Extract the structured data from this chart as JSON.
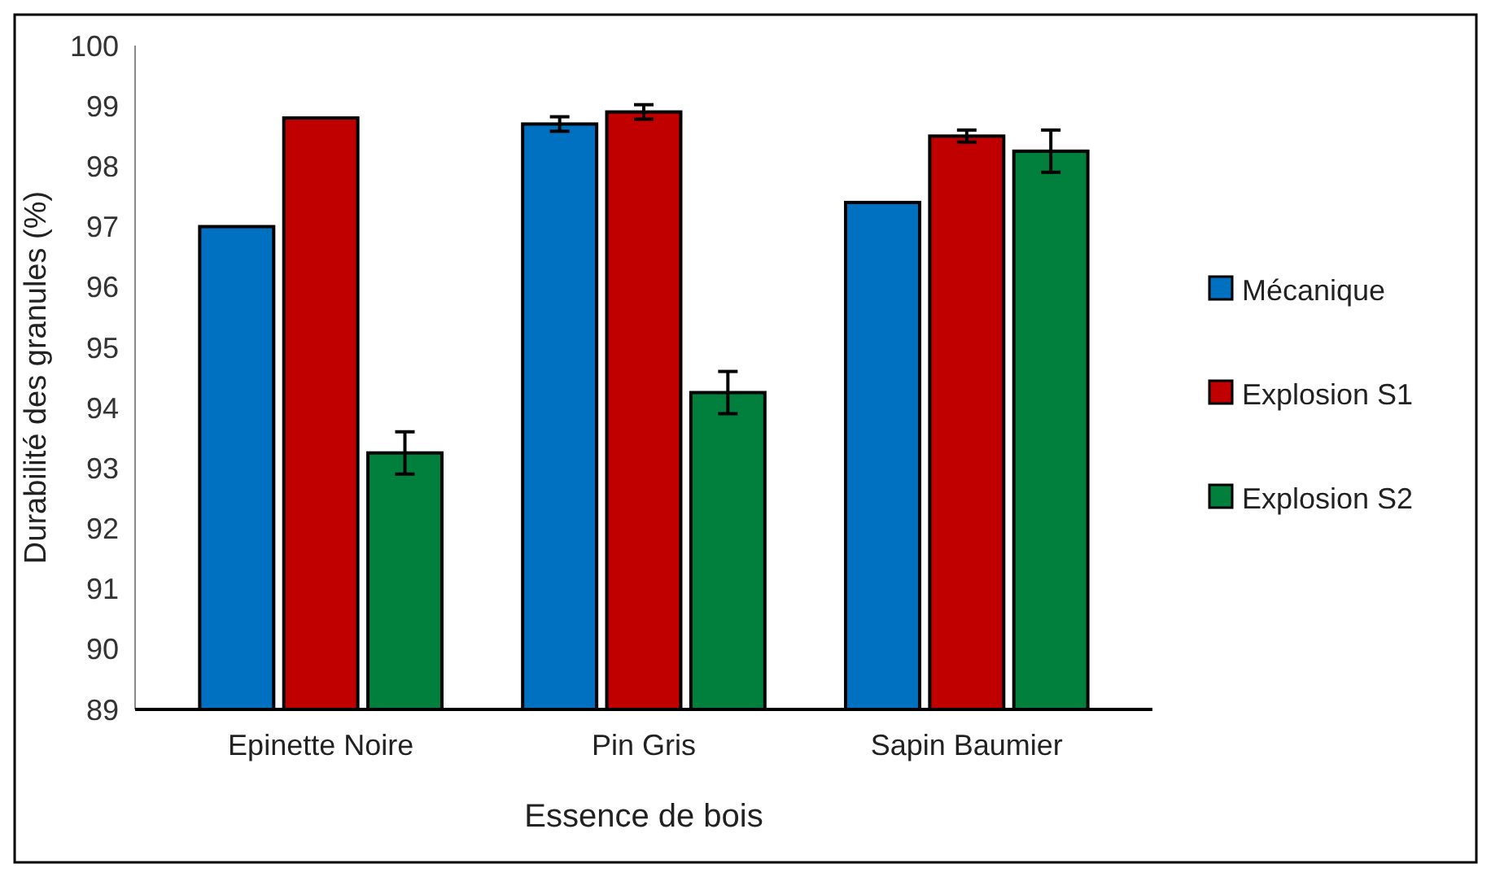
{
  "chart_data": {
    "type": "bar",
    "xlabel": "Essence de bois",
    "ylabel": "Durabilité des granules (%)",
    "categories": [
      "Epinette Noire",
      "Pin Gris",
      "Sapin Baumier"
    ],
    "series": [
      {
        "name": "Mécanique",
        "color": "#0070c0",
        "values": [
          97.0,
          98.7,
          97.4
        ],
        "errors": [
          null,
          0.12,
          null
        ]
      },
      {
        "name": "Explosion S1",
        "color": "#c00000",
        "values": [
          98.8,
          98.9,
          98.5
        ],
        "errors": [
          null,
          0.12,
          0.1
        ]
      },
      {
        "name": "Explosion S2",
        "color": "#00803c",
        "values": [
          93.25,
          94.25,
          98.25
        ],
        "errors": [
          0.35,
          0.35,
          0.35
        ]
      }
    ],
    "ylim": [
      89,
      100
    ],
    "yticks": [
      89,
      90,
      91,
      92,
      93,
      94,
      95,
      96,
      97,
      98,
      99,
      100
    ],
    "grid": false,
    "legend": "right"
  }
}
